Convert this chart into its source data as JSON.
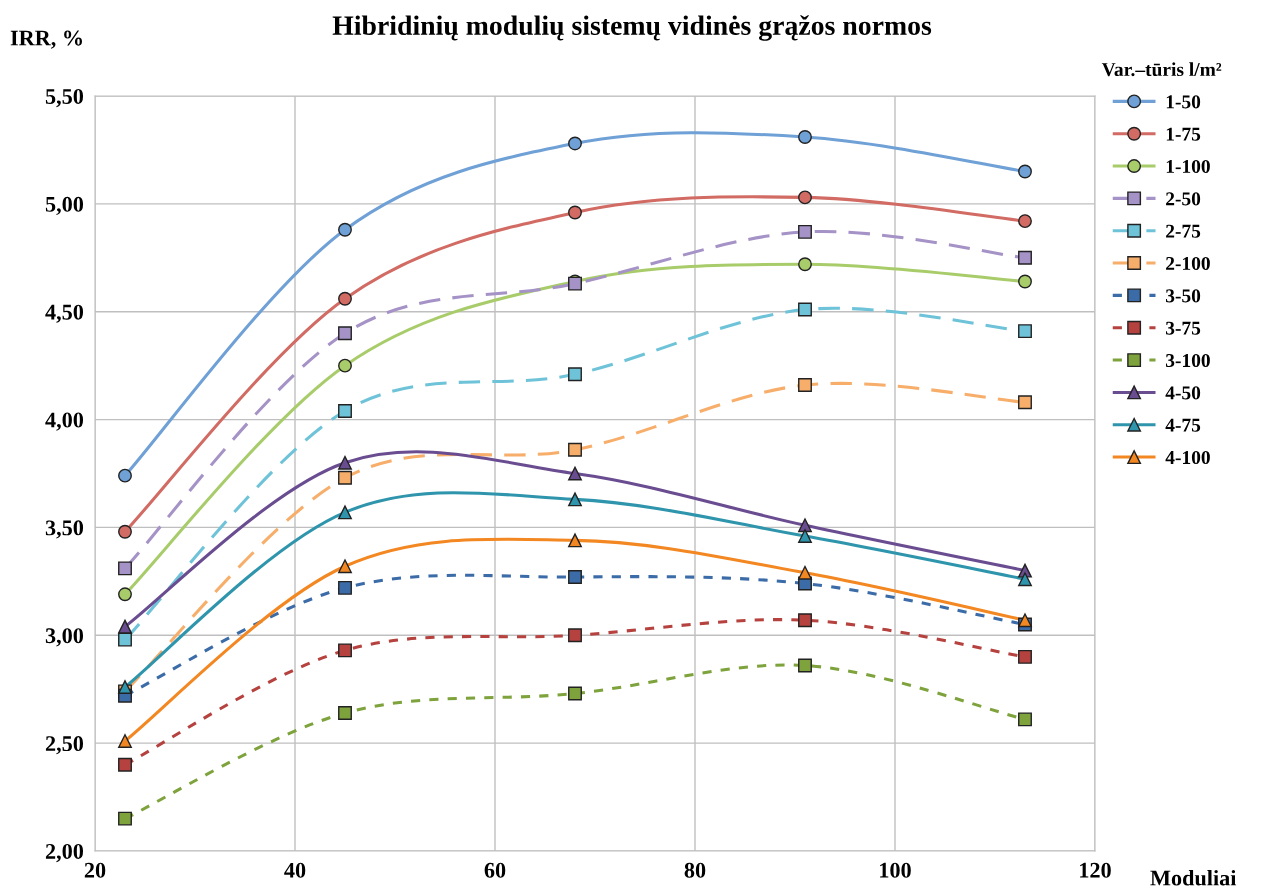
{
  "chart_data": {
    "type": "line",
    "title": "Hibridinių modulių sistemų vidinės grąžos normos",
    "xlabel": "Moduliai",
    "ylabel": "IRR, %",
    "legend_title": "Var.–tūris l/m²",
    "x": [
      23,
      45,
      68,
      91,
      113
    ],
    "xlim": [
      20,
      120
    ],
    "xticks": [
      20,
      40,
      60,
      80,
      100,
      120
    ],
    "ylim": [
      2.0,
      5.5
    ],
    "yticks": [
      {
        "value": 2.0,
        "label": "2,00"
      },
      {
        "value": 2.5,
        "label": "2,50"
      },
      {
        "value": 3.0,
        "label": "3,00"
      },
      {
        "value": 3.5,
        "label": "3,50"
      },
      {
        "value": 4.0,
        "label": "4,00"
      },
      {
        "value": 4.5,
        "label": "4,50"
      },
      {
        "value": 5.0,
        "label": "5,00"
      },
      {
        "value": 5.5,
        "label": "5,50"
      }
    ],
    "grid": true,
    "legend": "right",
    "series": [
      {
        "name": "1-50",
        "color": "#6fa0d6",
        "marker": "circle",
        "line_style": "solid",
        "values": [
          3.74,
          4.88,
          5.28,
          5.31,
          5.15
        ]
      },
      {
        "name": "1-75",
        "color": "#d16b63",
        "marker": "circle",
        "line_style": "solid",
        "values": [
          3.48,
          4.56,
          4.96,
          5.03,
          4.92
        ]
      },
      {
        "name": "1-100",
        "color": "#a9cc6b",
        "marker": "circle",
        "line_style": "solid",
        "values": [
          3.19,
          4.25,
          4.64,
          4.72,
          4.64
        ]
      },
      {
        "name": "2-50",
        "color": "#a592c6",
        "marker": "square",
        "line_style": "dashed",
        "values": [
          3.31,
          4.4,
          4.63,
          4.87,
          4.75
        ]
      },
      {
        "name": "2-75",
        "color": "#6ec3d9",
        "marker": "square",
        "line_style": "dashed",
        "values": [
          2.98,
          4.04,
          4.21,
          4.51,
          4.41
        ]
      },
      {
        "name": "2-100",
        "color": "#f7ae6a",
        "marker": "square",
        "line_style": "dashed",
        "values": [
          2.74,
          3.73,
          3.86,
          4.16,
          4.08
        ]
      },
      {
        "name": "3-50",
        "color": "#3c6ca8",
        "marker": "square",
        "line_style": "dotted",
        "values": [
          2.72,
          3.22,
          3.27,
          3.24,
          3.05
        ]
      },
      {
        "name": "3-75",
        "color": "#b5423e",
        "marker": "square",
        "line_style": "dotted",
        "values": [
          2.4,
          2.93,
          3.0,
          3.07,
          2.9
        ]
      },
      {
        "name": "3-100",
        "color": "#7ea33c",
        "marker": "square",
        "line_style": "dotted",
        "values": [
          2.15,
          2.64,
          2.73,
          2.86,
          2.61
        ]
      },
      {
        "name": "4-50",
        "color": "#6a4d91",
        "marker": "triangle",
        "line_style": "solid",
        "values": [
          3.04,
          3.8,
          3.75,
          3.51,
          3.3
        ]
      },
      {
        "name": "4-75",
        "color": "#2f95ad",
        "marker": "triangle",
        "line_style": "solid",
        "values": [
          2.76,
          3.57,
          3.63,
          3.46,
          3.26
        ]
      },
      {
        "name": "4-100",
        "color": "#f38721",
        "marker": "triangle",
        "line_style": "solid",
        "values": [
          2.51,
          3.32,
          3.44,
          3.29,
          3.07
        ]
      }
    ]
  }
}
